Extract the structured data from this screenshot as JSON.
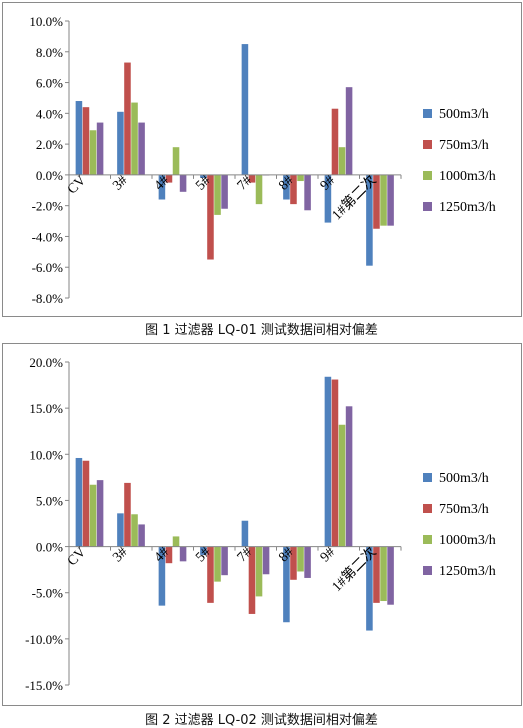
{
  "chart_data": [
    {
      "type": "bar",
      "title": "",
      "caption": "图 1  过滤器 LQ-01 测试数据间相对偏差",
      "categories": [
        "CV",
        "3#",
        "4#",
        "5#",
        "7#",
        "8#",
        "9#",
        "1#第二次"
      ],
      "ylim": [
        -0.08,
        0.1
      ],
      "yticks": [
        "10.0%",
        "8.0%",
        "6.0%",
        "4.0%",
        "2.0%",
        "0.0%",
        "-2.0%",
        "-4.0%",
        "-6.0%",
        "-8.0%"
      ],
      "grid": false,
      "legend_position": "right",
      "series": [
        {
          "name": "500m3/h",
          "color": "#4f81bd",
          "values": [
            0.048,
            0.041,
            -0.016,
            -0.002,
            0.085,
            -0.016,
            -0.031,
            -0.059
          ]
        },
        {
          "name": "750m3/h",
          "color": "#c0504d",
          "values": [
            0.044,
            0.073,
            -0.005,
            -0.055,
            -0.005,
            -0.019,
            0.043,
            -0.035
          ]
        },
        {
          "name": "1000m3/h",
          "color": "#9bbb59",
          "values": [
            0.029,
            0.047,
            0.018,
            -0.026,
            -0.019,
            -0.004,
            0.018,
            -0.033
          ]
        },
        {
          "name": "1250m3/h",
          "color": "#8064a2",
          "values": [
            0.034,
            0.034,
            -0.011,
            -0.022,
            0.0,
            -0.023,
            0.057,
            -0.033
          ]
        }
      ]
    },
    {
      "type": "bar",
      "title": "",
      "caption": "图 2  过滤器 LQ-02 测试数据间相对偏差",
      "categories": [
        "CV",
        "3#",
        "4#",
        "5#",
        "7#",
        "8#",
        "9#",
        "1#第二次"
      ],
      "ylim": [
        -0.15,
        0.2
      ],
      "yticks": [
        "20.0%",
        "15.0%",
        "10.0%",
        "5.0%",
        "0.0%",
        "-5.0%",
        "-10.0%",
        "-15.0%"
      ],
      "grid": false,
      "legend_position": "right",
      "series": [
        {
          "name": "500m3/h",
          "color": "#4f81bd",
          "values": [
            0.096,
            0.036,
            -0.064,
            -0.009,
            0.028,
            -0.082,
            0.184,
            -0.091
          ]
        },
        {
          "name": "750m3/h",
          "color": "#c0504d",
          "values": [
            0.093,
            0.069,
            -0.018,
            -0.061,
            -0.073,
            -0.036,
            0.181,
            -0.061
          ]
        },
        {
          "name": "1000m3/h",
          "color": "#9bbb59",
          "values": [
            0.067,
            0.035,
            0.011,
            -0.038,
            -0.054,
            -0.027,
            0.132,
            -0.059
          ]
        },
        {
          "name": "1250m3/h",
          "color": "#8064a2",
          "values": [
            0.072,
            0.024,
            -0.016,
            -0.031,
            -0.03,
            -0.034,
            0.152,
            -0.063
          ]
        }
      ]
    }
  ]
}
